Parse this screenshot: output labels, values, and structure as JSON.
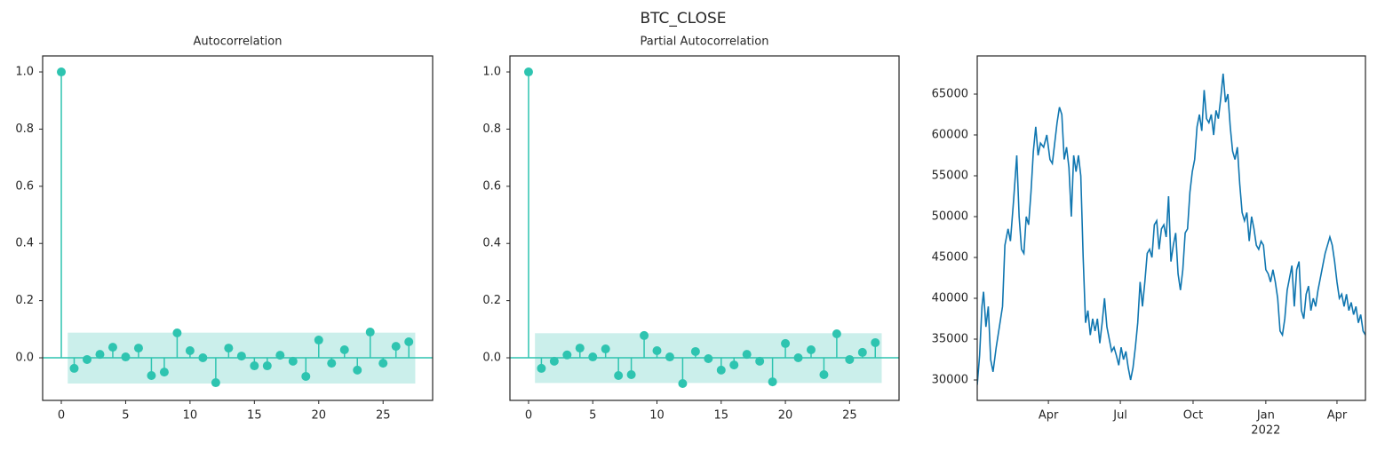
{
  "title": "BTC_CLOSE",
  "chart_data": [
    {
      "type": "stem",
      "title": "Autocorrelation",
      "color": "#2ec4b0",
      "x": [
        0,
        1,
        2,
        3,
        4,
        5,
        6,
        7,
        8,
        9,
        10,
        11,
        12,
        13,
        14,
        15,
        16,
        17,
        18,
        19,
        20,
        21,
        22,
        23,
        24,
        25,
        26,
        27
      ],
      "values": [
        1.0,
        -0.037,
        -0.006,
        0.012,
        0.037,
        0.003,
        0.034,
        -0.062,
        -0.05,
        0.087,
        0.025,
        0.0,
        -0.087,
        0.034,
        0.006,
        -0.028,
        -0.028,
        0.009,
        -0.012,
        -0.065,
        0.062,
        -0.019,
        0.028,
        -0.043,
        0.09,
        -0.019,
        0.04,
        0.056
      ],
      "conf_band": {
        "x": [
          0.5,
          27.5
        ],
        "lower": -0.09,
        "upper": 0.088,
        "color": "#cbefeb"
      },
      "xlim": [
        -1.45,
        28.85
      ],
      "ylim": [
        -0.149,
        1.056
      ],
      "xticks": [
        0,
        5,
        10,
        15,
        20,
        25
      ],
      "yticks": [
        {
          "value": 0,
          "label": "0.0"
        },
        0.2,
        0.4,
        0.6,
        0.8,
        {
          "value": 1,
          "label": "1.0"
        }
      ]
    },
    {
      "type": "stem",
      "title": "Partial Autocorrelation",
      "color": "#2ec4b0",
      "x": [
        0,
        1,
        2,
        3,
        4,
        5,
        6,
        7,
        8,
        9,
        10,
        11,
        12,
        13,
        14,
        15,
        16,
        17,
        18,
        19,
        20,
        21,
        22,
        23,
        24,
        25,
        26,
        27
      ],
      "values": [
        1.0,
        -0.037,
        -0.012,
        0.01,
        0.034,
        0.003,
        0.031,
        -0.062,
        -0.059,
        0.078,
        0.025,
        0.003,
        -0.09,
        0.022,
        -0.003,
        -0.043,
        -0.025,
        0.012,
        -0.012,
        -0.084,
        0.05,
        0.0,
        0.028,
        -0.059,
        0.084,
        -0.006,
        0.019,
        0.053
      ],
      "conf_band": {
        "x": [
          0.5,
          27.5
        ],
        "lower": -0.088,
        "upper": 0.086,
        "color": "#cbefeb"
      },
      "xlim": [
        -1.45,
        28.85
      ],
      "ylim": [
        -0.149,
        1.056
      ],
      "xticks": [
        0,
        5,
        10,
        15,
        20,
        25
      ],
      "yticks": [
        {
          "value": 0,
          "label": "0.0"
        },
        0.2,
        0.4,
        0.6,
        0.8,
        {
          "value": 1,
          "label": "1.0"
        }
      ]
    },
    {
      "type": "line",
      "color": "#0f76b0",
      "x": [
        0,
        3,
        6,
        8,
        11,
        14,
        17,
        20,
        24,
        28,
        32,
        35,
        39,
        42,
        46,
        50,
        53,
        56,
        59,
        62,
        65,
        68,
        71,
        74,
        77,
        80,
        84,
        88,
        92,
        95,
        98,
        101,
        104,
        107,
        110,
        113,
        116,
        119,
        122,
        125,
        128,
        131,
        134,
        137,
        140,
        143,
        146,
        149,
        152,
        155,
        158,
        161,
        164,
        167,
        170,
        173,
        176,
        179,
        182,
        185,
        188,
        191,
        194,
        197,
        200,
        203,
        206,
        209,
        212,
        215,
        218,
        221,
        224,
        227,
        230,
        233,
        236,
        239,
        242,
        245,
        248,
        251,
        254,
        257,
        260,
        263,
        266,
        269,
        272,
        275,
        278,
        281,
        284,
        287,
        290,
        293,
        296,
        299,
        302,
        305,
        308,
        311,
        314,
        317,
        320,
        323,
        326,
        329,
        332,
        335,
        338,
        341,
        344,
        347,
        350,
        353,
        356,
        359,
        362,
        365,
        368,
        371,
        374,
        377,
        380,
        383,
        386,
        389,
        392,
        395,
        398,
        401,
        404,
        407,
        410,
        413,
        416,
        419,
        422,
        425,
        428,
        431,
        434,
        437,
        440,
        443,
        446,
        449,
        452,
        455,
        458,
        461,
        464,
        467,
        470,
        473,
        476,
        479,
        482,
        485,
        488,
        491
      ],
      "values": [
        29400,
        33000,
        39000,
        40800,
        36500,
        39000,
        32500,
        31000,
        34000,
        36500,
        39000,
        46500,
        48500,
        47000,
        52000,
        57500,
        50000,
        46000,
        45500,
        50000,
        49000,
        53000,
        58000,
        61000,
        57500,
        59000,
        58500,
        60000,
        57000,
        56500,
        59000,
        61500,
        63400,
        62500,
        57000,
        58500,
        56000,
        50000,
        57500,
        55500,
        57500,
        55000,
        45000,
        37000,
        38500,
        35500,
        37500,
        36000,
        37500,
        34500,
        37000,
        40000,
        36500,
        35000,
        33500,
        34000,
        33000,
        31800,
        34000,
        32500,
        33500,
        31500,
        30000,
        31500,
        34000,
        37000,
        42000,
        39000,
        42000,
        45500,
        46000,
        45000,
        49000,
        49500,
        46000,
        48500,
        49000,
        47500,
        52500,
        44500,
        46500,
        48000,
        43000,
        41000,
        43500,
        48000,
        48500,
        53000,
        55500,
        57000,
        61000,
        62500,
        60500,
        65500,
        62000,
        61500,
        62500,
        60000,
        63000,
        62000,
        64500,
        67500,
        64000,
        65000,
        61000,
        58000,
        57000,
        58500,
        54000,
        50500,
        49500,
        50500,
        47000,
        50000,
        48500,
        46500,
        46000,
        47000,
        46500,
        43500,
        43000,
        42000,
        43500,
        42000,
        40000,
        36000,
        35500,
        37500,
        41000,
        42500,
        44000,
        39000,
        43500,
        44500,
        38500,
        37500,
        40500,
        41500,
        38500,
        40000,
        39000,
        41000,
        42500,
        44000,
        45500,
        46500,
        47500,
        46500,
        44500,
        42000,
        40000,
        40500,
        39000,
        40500,
        38500,
        39500,
        38000,
        39000,
        37000,
        38000,
        36000,
        35500
      ],
      "xlim": [
        0,
        491
      ],
      "ylim": [
        27500,
        69674
      ],
      "xticks": [
        {
          "value": 90,
          "label": "Apr"
        },
        {
          "value": 181,
          "label": "Jul"
        },
        {
          "value": 273,
          "label": "Oct"
        },
        {
          "value": 365,
          "label": "Jan",
          "sublabel": "2022"
        },
        {
          "value": 455,
          "label": "Apr"
        }
      ],
      "yticks": [
        30000,
        35000,
        40000,
        45000,
        50000,
        55000,
        60000,
        65000
      ]
    }
  ]
}
